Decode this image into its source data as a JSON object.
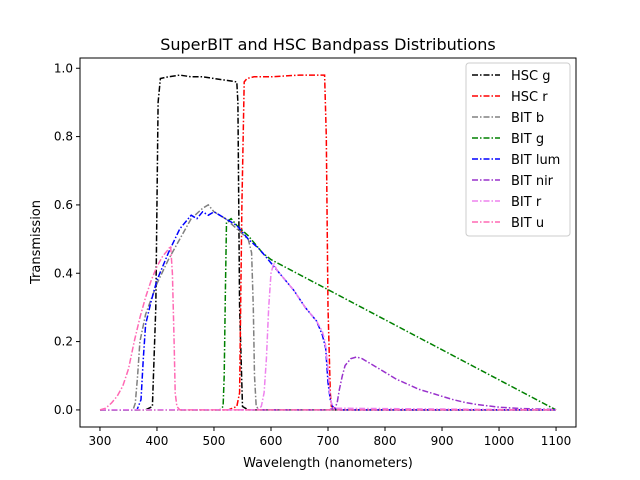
{
  "chart_data": {
    "type": "line",
    "title": "SuperBIT and HSC Bandpass Distributions",
    "xlabel": "Wavelength (nanometers)",
    "ylabel": "Transmission",
    "xlim": [
      265,
      1135
    ],
    "ylim": [
      -0.05,
      1.03
    ],
    "xticks": [
      300,
      400,
      500,
      600,
      700,
      800,
      900,
      1000,
      1100
    ],
    "yticks": [
      0.0,
      0.2,
      0.4,
      0.6,
      0.8,
      1.0
    ],
    "xtick_labels": [
      "300",
      "400",
      "500",
      "600",
      "700",
      "800",
      "900",
      "1000",
      "1100"
    ],
    "ytick_labels": [
      "0.0",
      "0.2",
      "0.4",
      "0.6",
      "0.8",
      "1.0"
    ],
    "grid": false,
    "legend_position": "top-right",
    "series": [
      {
        "name": "HSC g",
        "color": "#000000",
        "x": [
          300,
          380,
          392,
          398,
          402,
          406,
          420,
          440,
          460,
          480,
          500,
          520,
          540,
          542,
          545,
          550,
          560,
          600,
          700,
          1100
        ],
        "values": [
          0,
          0,
          0.01,
          0.3,
          0.9,
          0.97,
          0.975,
          0.98,
          0.975,
          0.975,
          0.97,
          0.965,
          0.96,
          0.9,
          0.3,
          0.01,
          0,
          0,
          0,
          0
        ]
      },
      {
        "name": "HSC r",
        "color": "#ff0000",
        "x": [
          300,
          525,
          540,
          545,
          549,
          553,
          558,
          570,
          600,
          650,
          680,
          694,
          697,
          700,
          704,
          706,
          720,
          1100
        ],
        "values": [
          0,
          0,
          0.01,
          0.05,
          0.6,
          0.96,
          0.97,
          0.975,
          0.975,
          0.98,
          0.98,
          0.98,
          0.8,
          0.3,
          0.05,
          0.01,
          0,
          0
        ]
      },
      {
        "name": "BIT b",
        "color": "#808080",
        "x": [
          300,
          358,
          362,
          366,
          370,
          380,
          400,
          420,
          440,
          460,
          480,
          490,
          500,
          520,
          540,
          560,
          566,
          569,
          571,
          574,
          580,
          1100
        ],
        "values": [
          0,
          0,
          0.02,
          0.1,
          0.2,
          0.28,
          0.37,
          0.44,
          0.5,
          0.56,
          0.59,
          0.6,
          0.58,
          0.56,
          0.53,
          0.5,
          0.46,
          0.3,
          0.1,
          0.01,
          0,
          0
        ]
      },
      {
        "name": "BIT g",
        "color": "#008000",
        "x": [
          300,
          510,
          516,
          518,
          520,
          522,
          530,
          540,
          560,
          580,
          585,
          600,
          1100
        ],
        "values": [
          0,
          0,
          0.01,
          0.1,
          0.35,
          0.55,
          0.56,
          0.54,
          0.51,
          0.47,
          0.46,
          0.44,
          0
        ]
      },
      {
        "name": "BIT lum",
        "color": "#0000ff",
        "x": [
          300,
          365,
          372,
          376,
          380,
          390,
          400,
          420,
          440,
          460,
          470,
          480,
          490,
          500,
          520,
          540,
          560,
          580,
          600,
          620,
          640,
          660,
          680,
          690,
          696,
          700,
          704,
          708,
          712,
          720,
          1100
        ],
        "values": [
          0,
          0,
          0.03,
          0.15,
          0.25,
          0.32,
          0.38,
          0.46,
          0.53,
          0.57,
          0.56,
          0.58,
          0.57,
          0.58,
          0.56,
          0.54,
          0.5,
          0.47,
          0.43,
          0.39,
          0.35,
          0.3,
          0.26,
          0.22,
          0.18,
          0.08,
          0.03,
          0.01,
          0.005,
          0,
          0
        ]
      },
      {
        "name": "BIT nir",
        "color": "#9932cc",
        "x": [
          300,
          680,
          700,
          712,
          716,
          720,
          725,
          730,
          740,
          750,
          760,
          780,
          800,
          820,
          840,
          860,
          880,
          900,
          920,
          940,
          960,
          980,
          1000,
          1020,
          1040,
          1060,
          1080,
          1100
        ],
        "values": [
          0,
          0,
          0,
          0.005,
          0.02,
          0.06,
          0.1,
          0.13,
          0.15,
          0.155,
          0.15,
          0.13,
          0.11,
          0.09,
          0.075,
          0.06,
          0.05,
          0.04,
          0.03,
          0.022,
          0.016,
          0.012,
          0.008,
          0.006,
          0.004,
          0.003,
          0.002,
          0.001
        ]
      },
      {
        "name": "BIT r",
        "color": "#ee82ee",
        "x": [
          300,
          575,
          583,
          588,
          592,
          596,
          600,
          605,
          610,
          620,
          640,
          660,
          680,
          690,
          695,
          700,
          703,
          706,
          710,
          1100
        ],
        "values": [
          0,
          0,
          0.01,
          0.05,
          0.15,
          0.3,
          0.4,
          0.43,
          0.41,
          0.39,
          0.35,
          0.3,
          0.26,
          0.23,
          0.2,
          0.12,
          0.05,
          0.02,
          0.005,
          0
        ]
      },
      {
        "name": "BIT u",
        "color": "#ff69b4",
        "x": [
          300,
          310,
          320,
          330,
          340,
          350,
          360,
          370,
          380,
          390,
          400,
          410,
          420,
          424,
          427,
          430,
          432,
          435,
          440,
          1100
        ],
        "values": [
          0,
          0.005,
          0.02,
          0.04,
          0.07,
          0.12,
          0.2,
          0.27,
          0.33,
          0.38,
          0.42,
          0.45,
          0.47,
          0.48,
          0.4,
          0.2,
          0.05,
          0.01,
          0,
          0
        ]
      }
    ]
  }
}
